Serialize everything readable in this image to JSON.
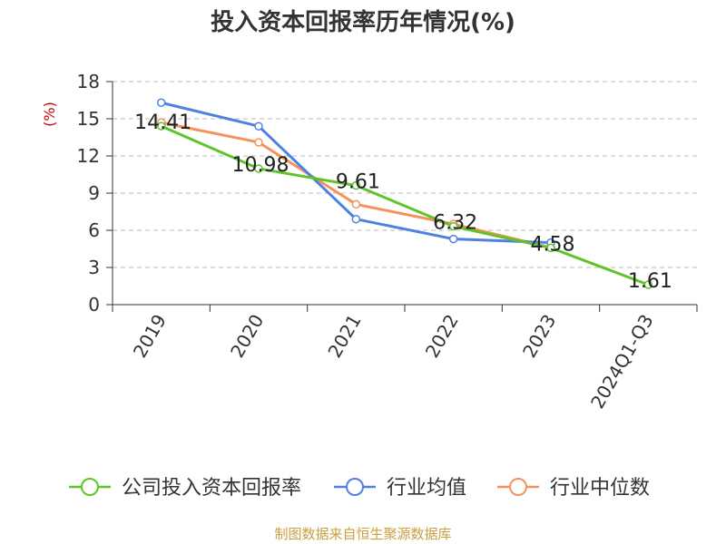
{
  "title": "投入资本回报率历年情况(%)",
  "source": "制图数据来自恒生聚源数据库",
  "chart_data": {
    "type": "line",
    "title": "投入资本回报率历年情况(%)",
    "ylabel": "(%)",
    "xlabel": "",
    "categories": [
      "2019",
      "2020",
      "2021",
      "2022",
      "2023",
      "2024Q1-Q3"
    ],
    "ylim": [
      0,
      18
    ],
    "yticks": [
      0,
      3,
      6,
      9,
      12,
      15,
      18
    ],
    "grid": true,
    "legend_position": "bottom",
    "series": [
      {
        "name": "公司投入资本回报率",
        "color": "#5ec42a",
        "values": [
          14.41,
          10.98,
          9.61,
          6.32,
          4.58,
          1.61
        ],
        "labels": [
          "14.41",
          "10.98",
          "9.61",
          "6.32",
          "4.58",
          "1.61"
        ]
      },
      {
        "name": "行业均值",
        "color": "#4f82e0",
        "values": [
          16.3,
          14.4,
          6.9,
          5.3,
          5.0,
          null
        ]
      },
      {
        "name": "行业中位数",
        "color": "#f5925a",
        "values": [
          14.7,
          13.1,
          8.1,
          6.5,
          4.6,
          null
        ]
      }
    ]
  }
}
